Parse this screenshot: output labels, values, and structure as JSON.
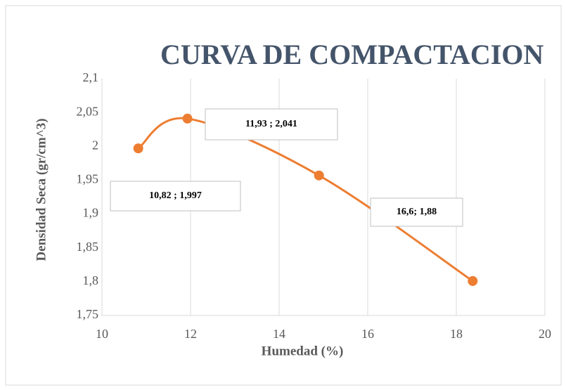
{
  "chart_data": {
    "type": "line",
    "title": "CURVA DE COMPACTACION",
    "x_label": "Humedad (%)",
    "y_label": "Densidad Seca (gr/cm^3)",
    "series": [
      {
        "color": "#ed7d31",
        "x": [
          10.82,
          11.93,
          14.9,
          18.37
        ],
        "values": [
          1.997,
          2.041,
          1.957,
          1.801
        ]
      }
    ],
    "annotations": [
      "10,82 ; 1,997",
      "11,93 ; 2,041",
      "16,6; 1,88"
    ],
    "xlim": [
      10,
      20
    ],
    "xticks": [
      10,
      12,
      14,
      16,
      18,
      20
    ],
    "ylim": [
      1.75,
      2.1
    ],
    "yticks": [
      {
        "value": 1.75,
        "label": "1,75"
      },
      {
        "value": 1.8,
        "label": "1,8"
      },
      {
        "value": 1.85,
        "label": "1,85"
      },
      {
        "value": 1.9,
        "label": "1,9"
      },
      {
        "value": 1.95,
        "label": "1,95"
      },
      2,
      {
        "value": 2.05,
        "label": "2,05"
      },
      {
        "value": 2.1,
        "label": "2,1"
      }
    ],
    "grid": "x",
    "smooth": true
  }
}
